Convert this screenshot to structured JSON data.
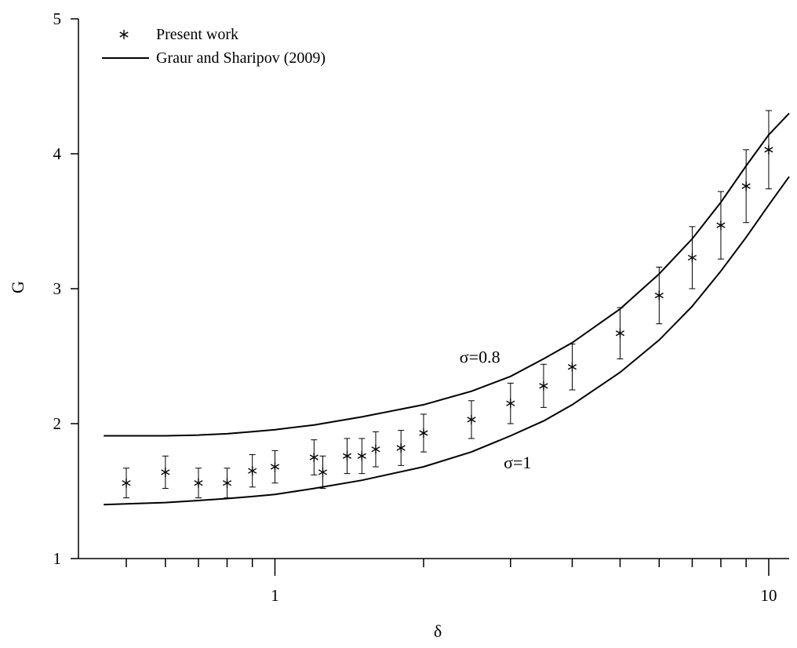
{
  "chart_data": {
    "type": "scatter",
    "title": "",
    "xlabel": "δ",
    "ylabel": "G",
    "xscale": "log",
    "xlim": [
      0.4,
      11
    ],
    "ylim": [
      1,
      5
    ],
    "x_tick_values": [
      0.5,
      0.6,
      0.7,
      0.8,
      0.9,
      1,
      2,
      3,
      4,
      5,
      6,
      7,
      8,
      9,
      10
    ],
    "x_tick_labels": [
      {
        "value": 1,
        "label": "1"
      },
      {
        "value": 10,
        "label": "10"
      }
    ],
    "y_ticks": [
      1,
      2,
      3,
      4,
      5
    ],
    "grid": false,
    "legend": {
      "placement": "top-left",
      "entries": [
        {
          "label": "Present work",
          "marker": "asterisk"
        },
        {
          "label": "Graur and Sharipov (2009)",
          "marker": "line"
        }
      ]
    },
    "series": [
      {
        "name": "Present work",
        "kind": "points-with-error-bars",
        "x": [
          0.5,
          0.6,
          0.7,
          0.8,
          0.9,
          1.0,
          1.2,
          1.25,
          1.4,
          1.5,
          1.6,
          1.8,
          2.0,
          2.5,
          3.0,
          3.5,
          4.0,
          5.0,
          6.0,
          7.0,
          8.0,
          9.0,
          10.0
        ],
        "y": [
          1.56,
          1.64,
          1.56,
          1.56,
          1.65,
          1.68,
          1.75,
          1.64,
          1.76,
          1.76,
          1.81,
          1.82,
          1.93,
          2.03,
          2.15,
          2.28,
          2.42,
          2.67,
          2.95,
          3.23,
          3.47,
          3.76,
          4.03
        ],
        "err": [
          0.11,
          0.12,
          0.11,
          0.11,
          0.12,
          0.12,
          0.13,
          0.12,
          0.13,
          0.13,
          0.13,
          0.13,
          0.14,
          0.14,
          0.15,
          0.16,
          0.17,
          0.19,
          0.21,
          0.23,
          0.25,
          0.27,
          0.29
        ]
      },
      {
        "name": "Graur and Sharipov (2009)",
        "kind": "line",
        "annotation": "σ=0.8",
        "x": [
          0.45,
          0.5,
          0.6,
          0.7,
          0.8,
          0.9,
          1.0,
          1.2,
          1.5,
          2.0,
          2.5,
          3.0,
          3.5,
          4.0,
          5.0,
          6.0,
          7.0,
          8.0,
          9.0,
          10.0,
          11.0
        ],
        "y": [
          1.91,
          1.91,
          1.91,
          1.915,
          1.925,
          1.94,
          1.955,
          1.99,
          2.05,
          2.14,
          2.24,
          2.35,
          2.48,
          2.6,
          2.85,
          3.11,
          3.37,
          3.64,
          3.91,
          4.14,
          4.3
        ]
      },
      {
        "name": "Graur and Sharipov (2009)",
        "kind": "line",
        "annotation": "σ=1",
        "x": [
          0.45,
          0.5,
          0.6,
          0.7,
          0.8,
          0.9,
          1.0,
          1.2,
          1.5,
          2.0,
          2.5,
          3.0,
          3.5,
          4.0,
          5.0,
          6.0,
          7.0,
          8.0,
          9.0,
          10.0,
          11.0
        ],
        "y": [
          1.4,
          1.405,
          1.415,
          1.43,
          1.445,
          1.46,
          1.475,
          1.52,
          1.58,
          1.68,
          1.79,
          1.91,
          2.02,
          2.14,
          2.38,
          2.62,
          2.87,
          3.13,
          3.38,
          3.62,
          3.83
        ]
      }
    ],
    "annotations": [
      {
        "text": "σ=0.8",
        "x": 2.6,
        "y": 2.45
      },
      {
        "text": "σ=1",
        "x": 3.1,
        "y": 1.67
      }
    ]
  }
}
